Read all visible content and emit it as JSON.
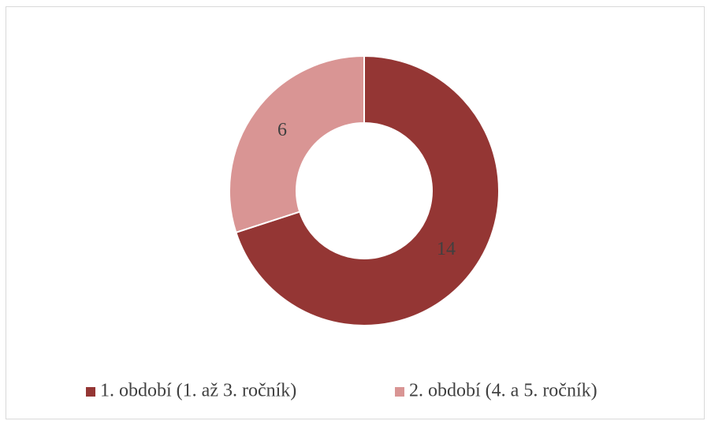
{
  "chart_data": {
    "type": "donut",
    "categories": [
      "1. období (1. až 3. ročník)",
      "2. období (4. a 5. ročník)"
    ],
    "values": [
      14,
      6
    ],
    "colors": [
      "#943634",
      "#d99594"
    ],
    "legend": "bottom"
  }
}
